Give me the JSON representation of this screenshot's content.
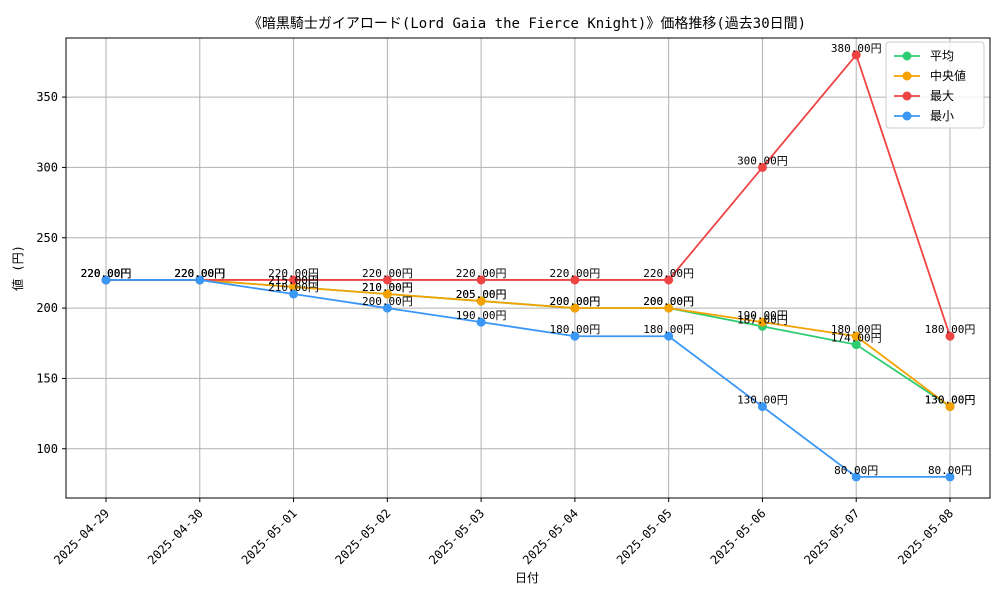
{
  "chart_data": {
    "type": "line",
    "title": "《暗黒騎士ガイアロード(Lord Gaia the Fierce Knight)》価格推移(過去30日間)",
    "xlabel": "日付",
    "ylabel": "値 (円)",
    "categories": [
      "2025-04-29",
      "2025-04-30",
      "2025-05-01",
      "2025-05-02",
      "2025-05-03",
      "2025-05-04",
      "2025-05-05",
      "2025-05-06",
      "2025-05-07",
      "2025-05-08"
    ],
    "ylim": [
      65,
      392
    ],
    "yticks": [
      100,
      150,
      200,
      250,
      300,
      350
    ],
    "grid": true,
    "legend_position": "top-right",
    "value_suffix": "円",
    "series": [
      {
        "name": "平均",
        "color": "#2ecc71",
        "values": [
          220,
          220,
          215,
          210,
          205,
          200,
          200,
          187,
          174,
          130
        ]
      },
      {
        "name": "中央値",
        "color": "#f5a200",
        "values": [
          220,
          220,
          215,
          210,
          205,
          200,
          200,
          190,
          180,
          130
        ]
      },
      {
        "name": "最大",
        "color": "#ef4444",
        "values": [
          220,
          220,
          220,
          220,
          220,
          220,
          220,
          300,
          380,
          180
        ]
      },
      {
        "name": "最小",
        "color": "#3b97f5",
        "values": [
          220,
          220,
          210,
          200,
          190,
          180,
          180,
          130,
          80,
          80
        ]
      }
    ]
  }
}
